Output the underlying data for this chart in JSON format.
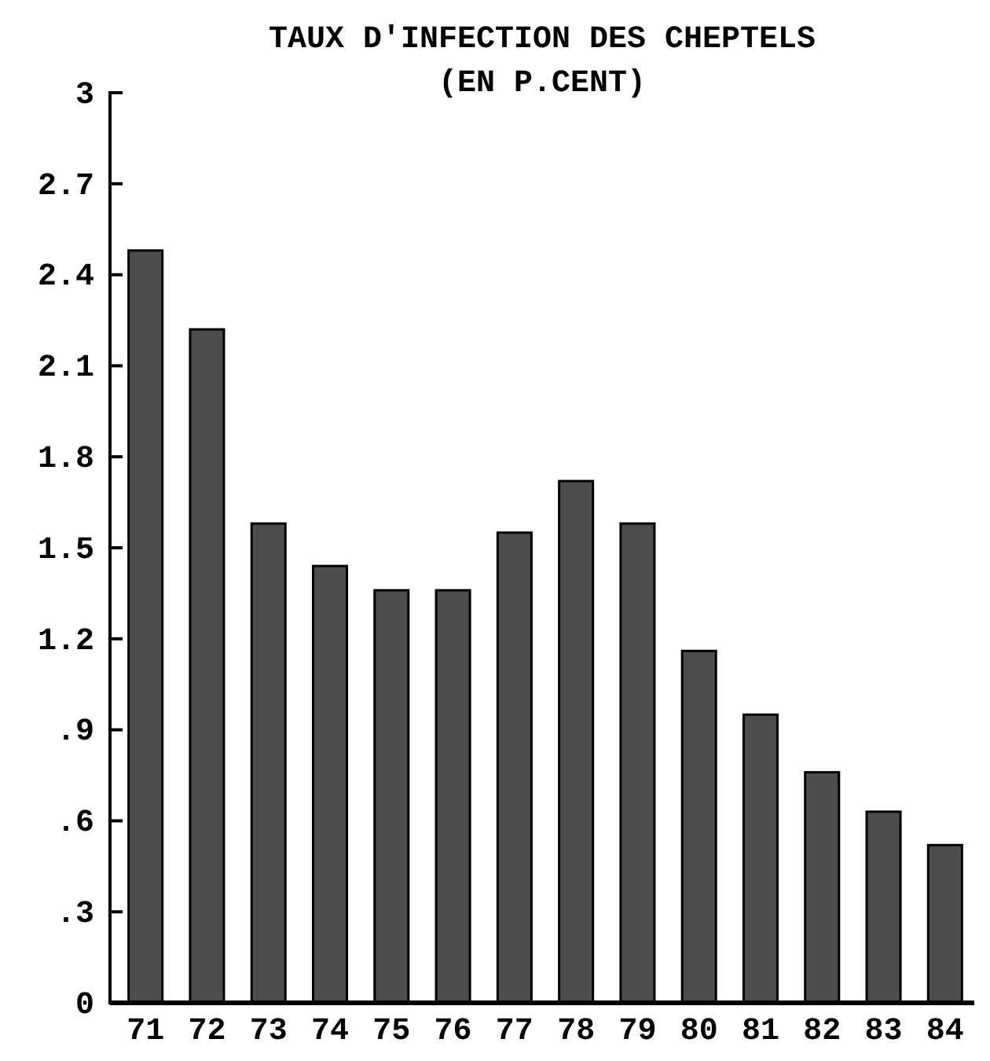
{
  "chart_data": {
    "type": "bar",
    "title": "TAUX D'INFECTION DES CHEPTELS",
    "subtitle": "(EN P.CENT)",
    "categories": [
      "71",
      "72",
      "73",
      "74",
      "75",
      "76",
      "77",
      "78",
      "79",
      "80",
      "81",
      "82",
      "83",
      "84"
    ],
    "values": [
      2.48,
      2.22,
      1.58,
      1.44,
      1.36,
      1.36,
      1.55,
      1.72,
      1.58,
      1.16,
      0.95,
      0.76,
      0.63,
      0.52
    ],
    "color": "#4d4d4d",
    "ylim": [
      0,
      3
    ],
    "yticks": [
      {
        "value": 0,
        "label": "0"
      },
      {
        "value": 0.3,
        "label": ".3"
      },
      {
        "value": 0.6,
        "label": ".6"
      },
      {
        "value": 0.9,
        "label": ".9"
      },
      1.2,
      1.5,
      1.8,
      2.1,
      2.4,
      2.7,
      3
    ],
    "grid": false
  }
}
